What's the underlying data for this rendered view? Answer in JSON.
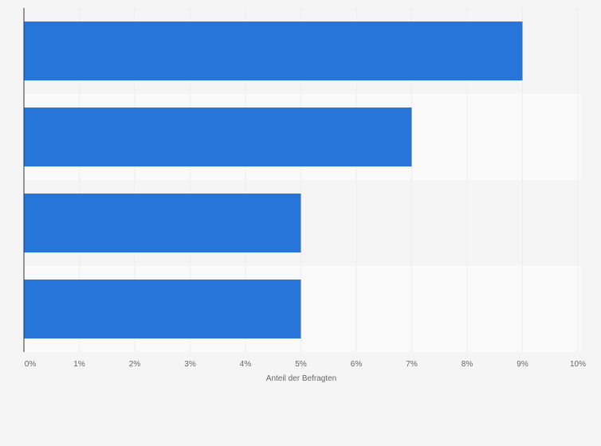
{
  "chart_data": {
    "type": "bar",
    "orientation": "horizontal",
    "categories": [
      "",
      "",
      "",
      ""
    ],
    "values": [
      9,
      7,
      5,
      5
    ],
    "unit": "%",
    "title": "",
    "xlabel": "Anteil der Befragten",
    "ylabel": "",
    "xlim": [
      0,
      10
    ],
    "xticks": [
      "0%",
      "1%",
      "2%",
      "3%",
      "4%",
      "5%",
      "6%",
      "7%",
      "8%",
      "9%",
      "10%"
    ],
    "grid": "vertical",
    "legend": "none",
    "colors": {
      "bar": "#2875d9",
      "band_a": "#f5f5f5",
      "band_b": "#fafafa",
      "grid": "#e2e2e2",
      "axis": "#333333"
    }
  }
}
